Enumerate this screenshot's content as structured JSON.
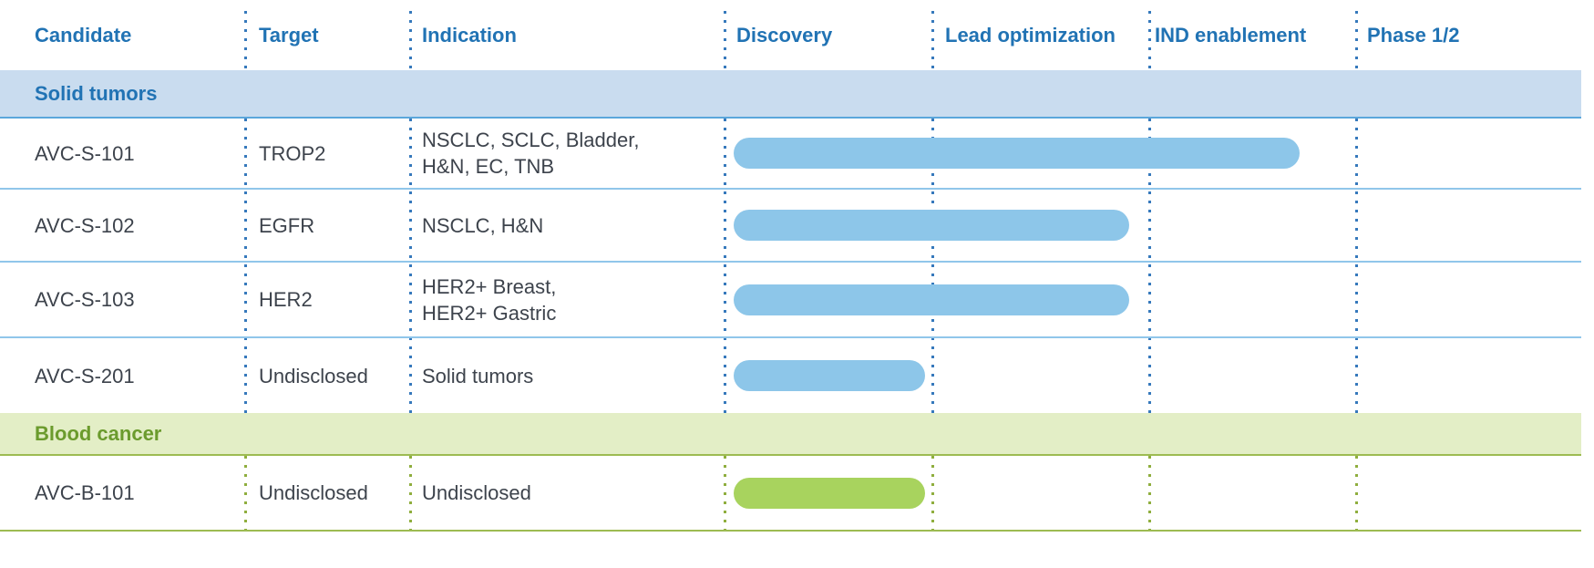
{
  "table": {
    "columns": [
      {
        "label": "Candidate"
      },
      {
        "label": "Target"
      },
      {
        "label": "Indication"
      },
      {
        "label": "Discovery"
      },
      {
        "label": "Lead optimization"
      },
      {
        "label": "IND enablement"
      },
      {
        "label": "Phase 1/2"
      }
    ],
    "sections": [
      {
        "label": "Solid tumors",
        "rows": [
          {
            "candidate": "AVC-S-101",
            "target": "TROP2",
            "indication": "NSCLC, SCLC, Bladder,\nH&N, EC, TNB"
          },
          {
            "candidate": "AVC-S-102",
            "target": "EGFR",
            "indication": "NSCLC, H&N"
          },
          {
            "candidate": "AVC-S-103",
            "target": "HER2",
            "indication": "HER2+ Breast,\nHER2+ Gastric"
          },
          {
            "candidate": "AVC-S-201",
            "target": "Undisclosed",
            "indication": "Solid tumors"
          }
        ]
      },
      {
        "label": "Blood cancer",
        "rows": [
          {
            "candidate": "AVC-B-101",
            "target": "Undisclosed",
            "indication": "Undisclosed"
          }
        ]
      }
    ]
  },
  "chart_data": {
    "type": "bar",
    "stages": [
      "Discovery",
      "Lead optimization",
      "IND enablement",
      "Phase 1/2"
    ],
    "rows": [
      {
        "candidate": "AVC-S-101",
        "start_stage": 0.05,
        "end_stage": 2.73,
        "phase_reached": "IND enablement",
        "color": "#8DC6E9"
      },
      {
        "candidate": "AVC-S-102",
        "start_stage": 0.05,
        "end_stage": 1.91,
        "phase_reached": "Lead optimization",
        "color": "#8DC6E9"
      },
      {
        "candidate": "AVC-S-103",
        "start_stage": 0.05,
        "end_stage": 1.91,
        "phase_reached": "Lead optimization",
        "color": "#8DC6E9"
      },
      {
        "candidate": "AVC-S-201",
        "start_stage": 0.05,
        "end_stage": 0.97,
        "phase_reached": "Discovery",
        "color": "#8DC6E9"
      },
      {
        "candidate": "AVC-B-101",
        "start_stage": 0.05,
        "end_stage": 0.97,
        "phase_reached": "Discovery",
        "color": "#A8D35E"
      }
    ],
    "legend_position": "none",
    "grid": "dotted-vertical-stage-dividers"
  },
  "colors": {
    "header_text": "#2173B4",
    "solid_tumors_band_bg": "#C9DCEF",
    "solid_tumors_text": "#2173B4",
    "solid_tumors_band_border": "#5BA7DB",
    "blood_cancer_band_bg": "#E3EEC6",
    "blood_cancer_text": "#6B9B2D",
    "blue_bar": "#8DC6E9",
    "green_bar": "#A8D35E",
    "body_text": "#3D434C",
    "blue_dotted_divider": "#3679BC",
    "green_dotted_divider": "#8FAE3E",
    "row_separator": "#90C6EA",
    "green_separator": "#9DBB52"
  }
}
